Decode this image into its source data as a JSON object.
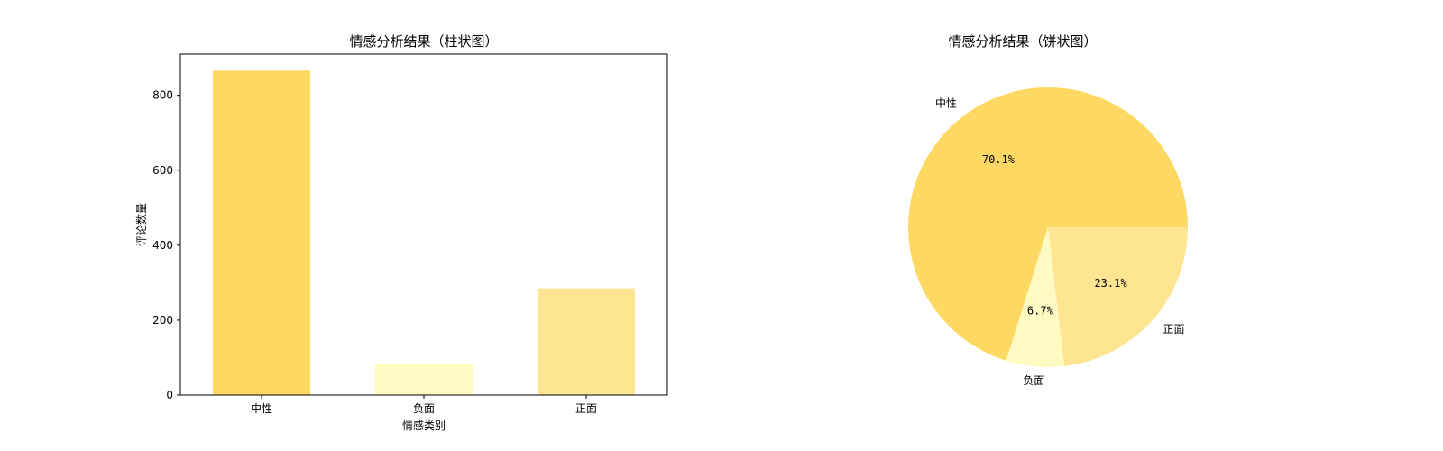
{
  "chart_data": [
    {
      "type": "bar",
      "title": "情感分析结果（柱状图）",
      "xlabel": "情感类别",
      "ylabel": "评论数量",
      "categories": [
        "中性",
        "负面",
        "正面"
      ],
      "values": [
        866,
        83,
        285
      ],
      "colors": [
        "#fdd964",
        "#fff9c2",
        "#fee591"
      ],
      "ylim": [
        0,
        910
      ],
      "yticks": [
        0,
        200,
        400,
        600,
        800
      ],
      "grid": false,
      "legend": "none"
    },
    {
      "type": "pie",
      "title": "情感分析结果（饼状图）",
      "labels": [
        "中性",
        "负面",
        "正面"
      ],
      "values": [
        70.1,
        6.7,
        23.1
      ],
      "percent_labels": [
        "70.1%",
        "6.7%",
        "23.1%"
      ],
      "colors": [
        "#fdd964",
        "#fff9c2",
        "#fee591"
      ],
      "start_angle_deg": 0,
      "direction": "counterclockwise",
      "legend": "none"
    }
  ]
}
